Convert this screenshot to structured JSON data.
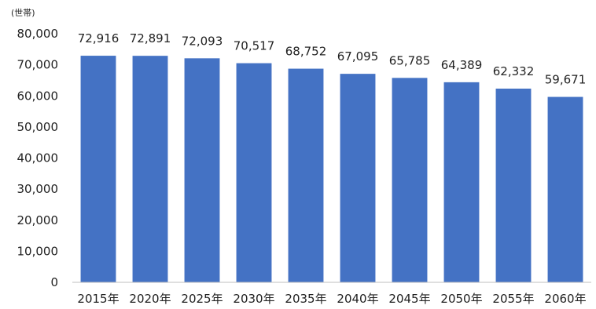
{
  "chart_data": {
    "type": "bar",
    "unit_label": "(世帯)",
    "categories": [
      "2015年",
      "2020年",
      "2025年",
      "2030年",
      "2035年",
      "2040年",
      "2045年",
      "2050年",
      "2055年",
      "2060年"
    ],
    "values": [
      72916,
      72891,
      72093,
      70517,
      68752,
      67095,
      65785,
      64389,
      62332,
      59671
    ],
    "data_labels": [
      "72,916",
      "72,891",
      "72,093",
      "70,517",
      "68,752",
      "67,095",
      "65,785",
      "64,389",
      "62,332",
      "59,671"
    ],
    "ylim": [
      0,
      80000
    ],
    "y_ticks": [
      0,
      10000,
      20000,
      30000,
      40000,
      50000,
      60000,
      70000,
      80000
    ],
    "y_tick_labels": [
      "0",
      "10,000",
      "20,000",
      "30,000",
      "40,000",
      "50,000",
      "60,000",
      "70,000",
      "80,000"
    ],
    "grid": false,
    "bar_color": "#4472C4"
  }
}
